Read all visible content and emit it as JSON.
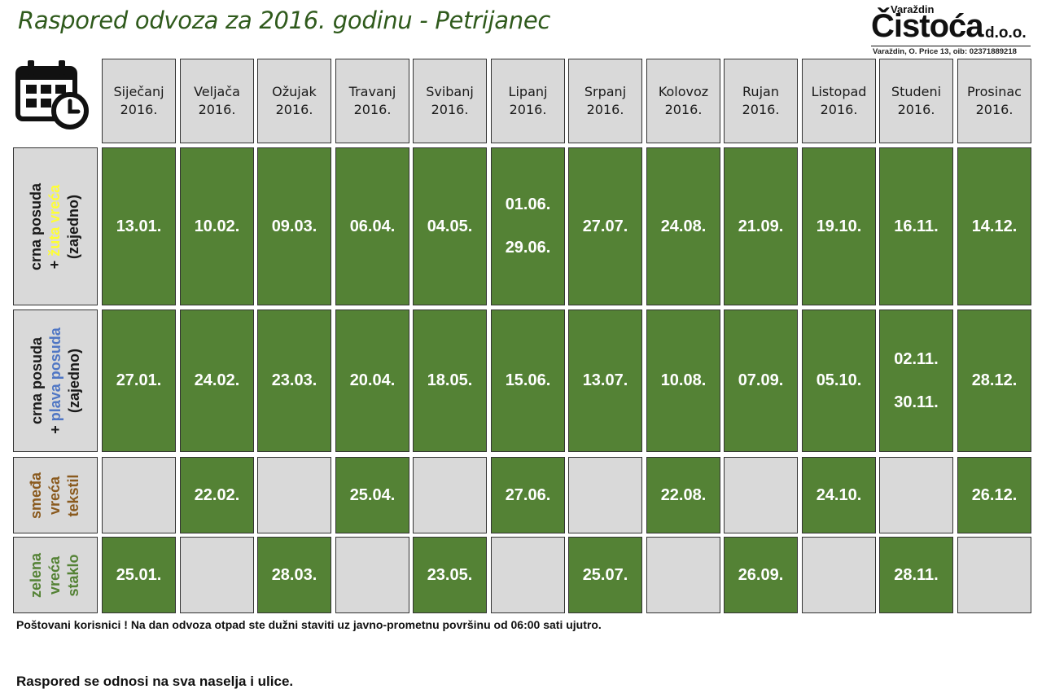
{
  "title": "Raspored odvoza za 2016. godinu - Petrijanec",
  "logo": {
    "top_text": "Varaždin",
    "main_text": "Čistoća",
    "suffix": "d.o.o.",
    "address": "Varaždin, O. Price 13, oib: 02371889218"
  },
  "colors": {
    "green": "#548235",
    "grey": "#d9d9d9",
    "yellow": "#ffff33",
    "blue": "#4f76c4",
    "brown": "#8a5a1e"
  },
  "header_icon": "calendar-clock-icon",
  "months": [
    {
      "name": "Siječanj",
      "year": "2016."
    },
    {
      "name": "Veljača",
      "year": "2016."
    },
    {
      "name": "Ožujak",
      "year": "2016."
    },
    {
      "name": "Travanj",
      "year": "2016."
    },
    {
      "name": "Svibanj",
      "year": "2016."
    },
    {
      "name": "Lipanj",
      "year": "2016."
    },
    {
      "name": "Srpanj",
      "year": "2016."
    },
    {
      "name": "Kolovoz",
      "year": "2016."
    },
    {
      "name": "Rujan",
      "year": "2016."
    },
    {
      "name": "Listopad",
      "year": "2016."
    },
    {
      "name": "Studeni",
      "year": "2016."
    },
    {
      "name": "Prosinac",
      "year": "2016."
    }
  ],
  "rows": [
    {
      "label_lines": [
        {
          "text": "crna posuda",
          "color": "black"
        },
        {
          "prefix": "+ ",
          "text": "žuta vreća",
          "color": "yellow"
        },
        {
          "text": "(zajedno)",
          "color": "black"
        }
      ],
      "dates": [
        [
          "13.01."
        ],
        [
          "10.02."
        ],
        [
          "09.03."
        ],
        [
          "06.04."
        ],
        [
          "04.05."
        ],
        [
          "01.06.",
          "29.06."
        ],
        [
          "27.07."
        ],
        [
          "24.08."
        ],
        [
          "21.09."
        ],
        [
          "19.10."
        ],
        [
          "16.11."
        ],
        [
          "14.12."
        ]
      ]
    },
    {
      "label_lines": [
        {
          "text": "crna posuda",
          "color": "black"
        },
        {
          "prefix": "+ ",
          "text": "plava posuda",
          "color": "blue"
        },
        {
          "text": "(zajedno)",
          "color": "black"
        }
      ],
      "dates": [
        [
          "27.01."
        ],
        [
          "24.02."
        ],
        [
          "23.03."
        ],
        [
          "20.04."
        ],
        [
          "18.05."
        ],
        [
          "15.06."
        ],
        [
          "13.07."
        ],
        [
          "10.08."
        ],
        [
          "07.09."
        ],
        [
          "05.10."
        ],
        [
          "02.11.",
          "30.11."
        ],
        [
          "28.12."
        ]
      ]
    },
    {
      "label_lines": [
        {
          "text": "smeđa",
          "color": "brown"
        },
        {
          "text": "vreća",
          "color": "brown"
        },
        {
          "text": "tekstil",
          "color": "brown"
        }
      ],
      "dates": [
        [],
        [
          "22.02."
        ],
        [],
        [
          "25.04."
        ],
        [],
        [
          "27.06."
        ],
        [],
        [
          "22.08."
        ],
        [],
        [
          "24.10."
        ],
        [],
        [
          "26.12."
        ]
      ]
    },
    {
      "label_lines": [
        {
          "text": "zelena",
          "color": "green"
        },
        {
          "text": "vreća",
          "color": "green"
        },
        {
          "text": "staklo",
          "color": "green"
        }
      ],
      "dates": [
        [
          "25.01."
        ],
        [],
        [
          "28.03."
        ],
        [],
        [
          "23.05."
        ],
        [],
        [
          "25.07."
        ],
        [],
        [
          "26.09."
        ],
        [],
        [
          "28.11."
        ],
        []
      ]
    }
  ],
  "notice": "Poštovani korisnici ! Na dan odvoza otpad ste dužni staviti uz javno-prometnu površinu od 06:00 sati ujutro.",
  "footer": "Raspored se odnosi na sva naselja i ulice."
}
